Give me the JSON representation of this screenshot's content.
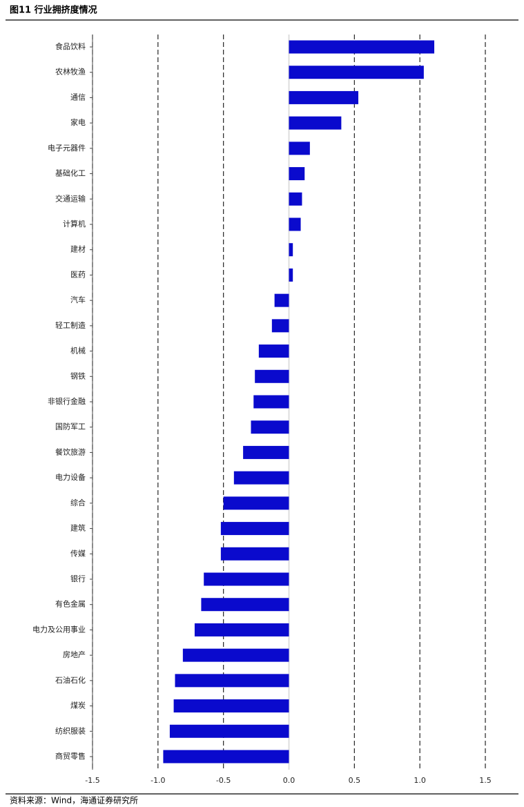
{
  "chart_data": {
    "type": "bar",
    "orientation": "horizontal",
    "title": "图11 行业拥挤度情况",
    "source": "资料来源：Wind，海通证券研究所",
    "categories": [
      "食品饮料",
      "农林牧渔",
      "通信",
      "家电",
      "电子元器件",
      "基础化工",
      "交通运输",
      "计算机",
      "建材",
      "医药",
      "汽车",
      "轻工制造",
      "机械",
      "钢铁",
      "非银行金融",
      "国防军工",
      "餐饮旅游",
      "电力设备",
      "综合",
      "建筑",
      "传媒",
      "银行",
      "有色金属",
      "电力及公用事业",
      "房地产",
      "石油石化",
      "煤炭",
      "纺织服装",
      "商贸零售"
    ],
    "values": [
      1.11,
      1.03,
      0.53,
      0.4,
      0.16,
      0.12,
      0.1,
      0.09,
      0.03,
      0.03,
      -0.11,
      -0.13,
      -0.23,
      -0.26,
      -0.27,
      -0.29,
      -0.35,
      -0.42,
      -0.5,
      -0.52,
      -0.52,
      -0.65,
      -0.67,
      -0.72,
      -0.81,
      -0.87,
      -0.88,
      -0.91,
      -0.96
    ],
    "color": "#0a0acd",
    "xlim": [
      -1.5,
      1.5
    ],
    "xticks": [
      -1.5,
      {
        "value": -1,
        "label": "-1.0"
      },
      -0.5,
      {
        "value": 0,
        "label": "0.0"
      },
      0.5,
      {
        "value": 1,
        "label": "1.0"
      },
      1.5
    ],
    "grid": true
  }
}
